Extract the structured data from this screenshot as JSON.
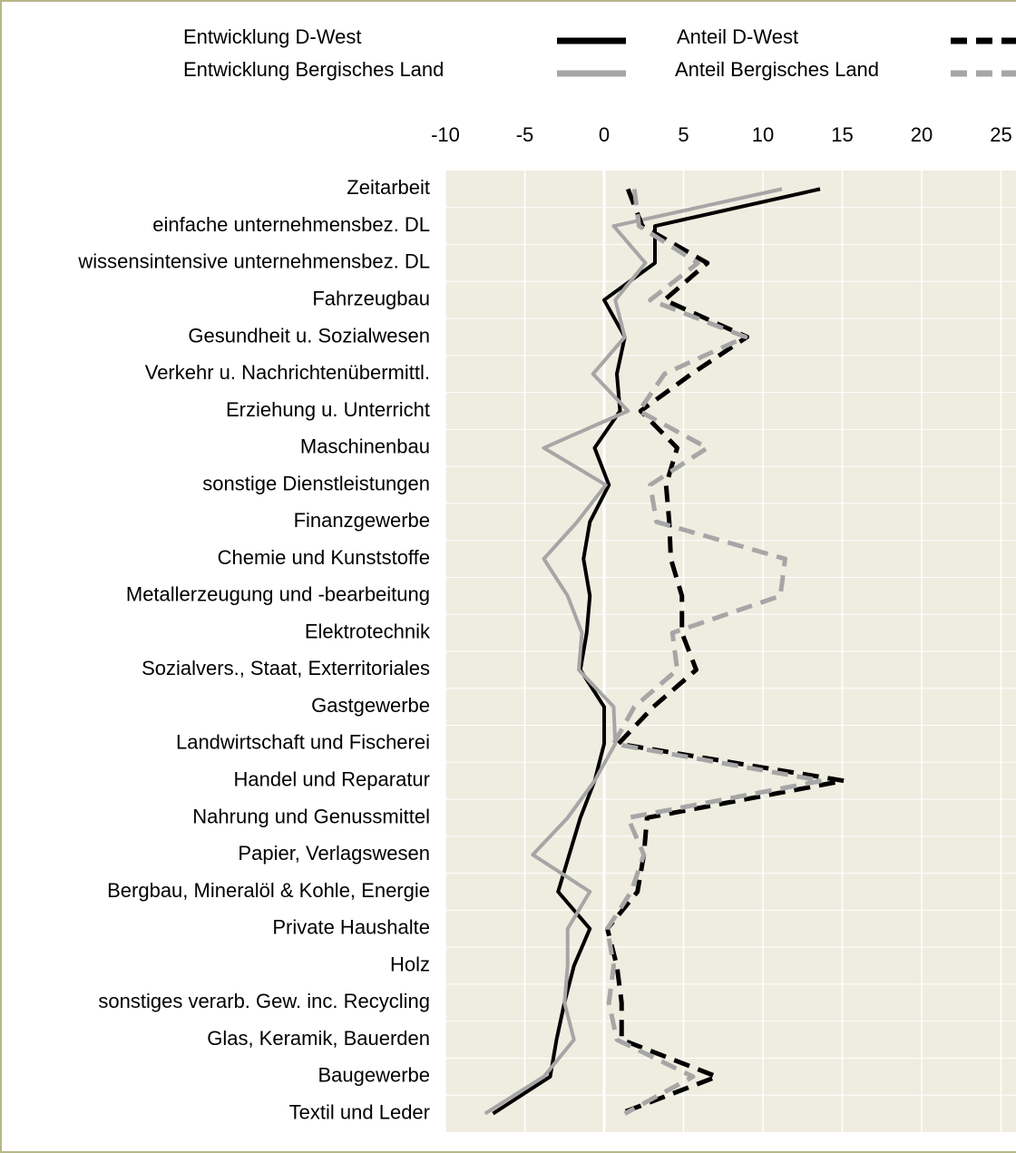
{
  "chart_data": {
    "type": "line",
    "orientation": "horizontal",
    "categories": [
      "Zeitarbeit",
      "einfache unternehmensbez.  DL",
      "wissensintensive unternehmensbez.  DL",
      "Fahrzeugbau",
      "Gesundheit u. Sozialwesen",
      "Verkehr u. Nachrichtenübermittl.",
      "Erziehung  u. Unterricht",
      "Maschinenbau",
      "sonstige Dienstleistungen",
      "Finanzgewerbe",
      "Chemie und Kunststoffe",
      "Metallerzeugung und -bearbeitung",
      "Elektrotechnik",
      "Sozialvers., Staat, Exterritoriales",
      "Gastgewerbe",
      "Landwirtschaft und Fischerei",
      "Handel und Reparatur",
      "Nahrung und Genussmittel",
      "Papier, Verlagswesen",
      "Bergbau, Mineralöl & Kohle, Energie",
      "Private Haushalte",
      "Holz",
      "sonstiges verarb. Gew. inc. Recycling",
      "Glas, Keramik, Bauerden",
      "Baugewerbe",
      "Textil und Leder"
    ],
    "series": [
      {
        "name": "Entwicklung D-West",
        "color": "#000000",
        "style": "solid",
        "values": [
          13.6,
          3.2,
          3.2,
          0,
          1.3,
          0.8,
          1.0,
          -0.6,
          0.3,
          -0.9,
          -1.3,
          -0.9,
          -1.1,
          -1.5,
          0,
          0,
          -0.6,
          -1.5,
          -2.2,
          -2.9,
          -0.9,
          -1.9,
          -2.5,
          -3.0,
          -3.4,
          -7.0
        ]
      },
      {
        "name": "Entwicklung Bergisches Land",
        "color": "#a6a6a6",
        "style": "solid",
        "values": [
          11.2,
          0.6,
          2.6,
          0.7,
          1.3,
          -0.7,
          1.5,
          -3.8,
          0.1,
          -1.7,
          -3.8,
          -2.3,
          -1.4,
          -1.6,
          0.6,
          0.7,
          -0.6,
          -2.3,
          -4.5,
          -0.9,
          -2.3,
          -2.3,
          -2.5,
          -1.9,
          -3.8,
          -7.5
        ]
      },
      {
        "name": "Anteil D-West",
        "color": "#000000",
        "style": "dashed",
        "values": [
          1.5,
          2.4,
          6.5,
          3.8,
          9.0,
          5.5,
          2.3,
          4.6,
          3.9,
          4.1,
          4.2,
          4.9,
          4.9,
          5.8,
          3.1,
          0.9,
          15.1,
          2.7,
          2.5,
          2.1,
          0.2,
          0.8,
          1.1,
          1.1,
          7.1,
          1.0
        ]
      },
      {
        "name": "Anteil Bergisches Land",
        "color": "#a6a6a6",
        "style": "dashed",
        "values": [
          1.9,
          2.2,
          5.9,
          2.9,
          8.9,
          3.8,
          2.2,
          6.5,
          2.9,
          3.3,
          11.4,
          11.1,
          4.3,
          4.6,
          1.9,
          0.6,
          13.7,
          1.5,
          2.5,
          1.7,
          0.2,
          0.6,
          0.3,
          0.8,
          5.6,
          1.3
        ]
      }
    ],
    "xlim": [
      -10,
      26
    ],
    "xticks": [
      -10,
      -5,
      0,
      5,
      10,
      15,
      20,
      25
    ],
    "grid": true
  }
}
